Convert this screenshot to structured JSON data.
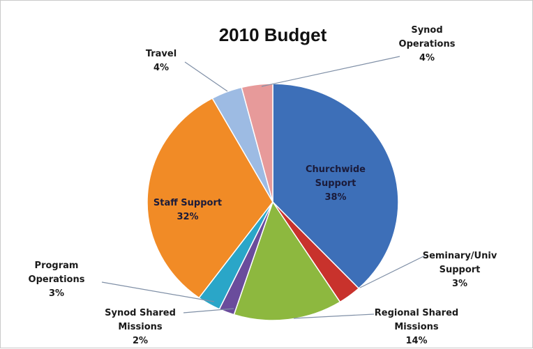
{
  "chart_data": {
    "type": "pie",
    "title": "2010 Budget",
    "slices": [
      {
        "label_lines": [
          "Churchwide",
          "Support"
        ],
        "pct_label": "38%",
        "value": 38,
        "color": "#3d6fb8"
      },
      {
        "label_lines": [
          "Seminary/Univ",
          "Support"
        ],
        "pct_label": "3%",
        "value": 3,
        "color": "#c8322c"
      },
      {
        "label_lines": [
          "Regional Shared",
          "Missions"
        ],
        "pct_label": "14%",
        "value": 14,
        "color": "#8db83f"
      },
      {
        "label_lines": [
          "Synod Shared",
          "Missions"
        ],
        "pct_label": "2%",
        "value": 2,
        "color": "#6a4c9c"
      },
      {
        "label_lines": [
          "Program",
          "Operations"
        ],
        "pct_label": "3%",
        "value": 3,
        "color": "#2aa6c8"
      },
      {
        "label_lines": [
          "Staff Support"
        ],
        "pct_label": "32%",
        "value": 32,
        "color": "#f18b26"
      },
      {
        "label_lines": [
          "Travel"
        ],
        "pct_label": "4%",
        "value": 4,
        "color": "#9dbbe3"
      },
      {
        "label_lines": [
          "Synod",
          "Operations"
        ],
        "pct_label": "4%",
        "value": 4,
        "color": "#e79a9a"
      }
    ]
  }
}
